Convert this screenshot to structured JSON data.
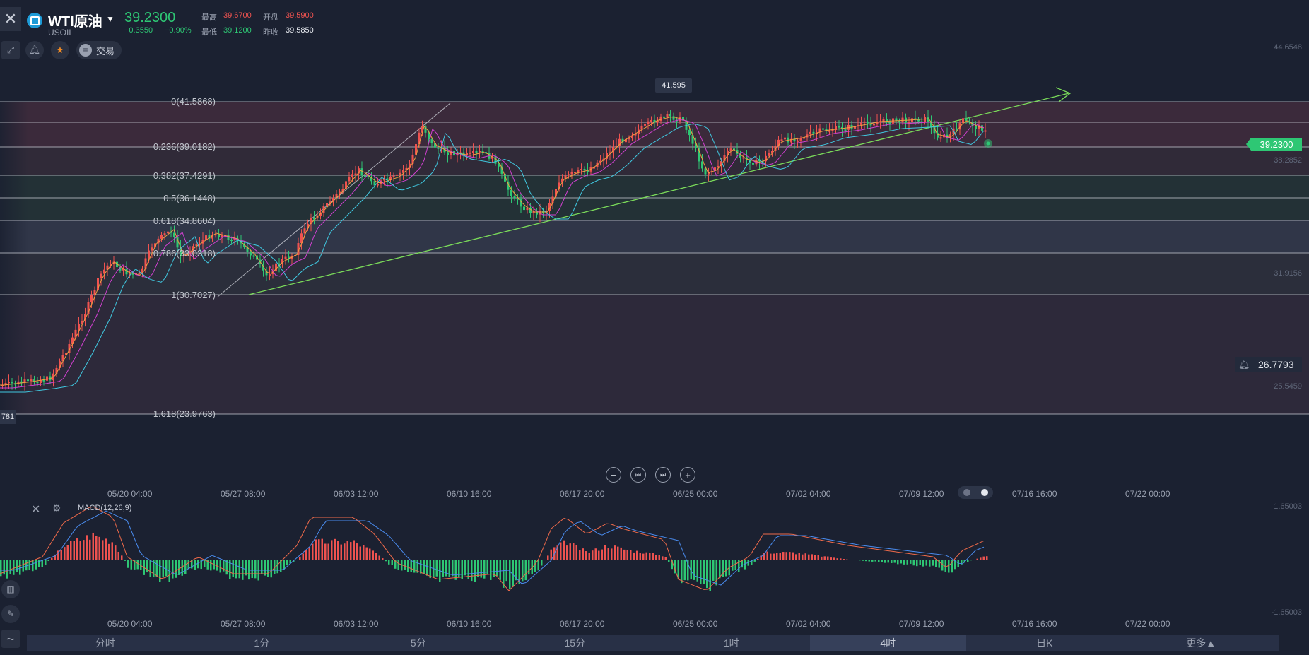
{
  "header": {
    "symbol_name": "WTI原油",
    "symbol_code": "USOIL",
    "price": "39.2300",
    "change": "−0.3550",
    "change_pct": "−0.90%",
    "high_label": "最高",
    "high": "39.6700",
    "open_label": "开盘",
    "open": "39.5900",
    "low_label": "最低",
    "low": "39.1200",
    "prev_close_label": "昨收",
    "prev_close": "39.5850",
    "trade_label": "交易"
  },
  "fib_levels": [
    {
      "label": "0(41.5868)"
    },
    {
      "label": "0.236(39.0182)"
    },
    {
      "label": "0.382(37.4291)"
    },
    {
      "label": "0.5(36.1448)"
    },
    {
      "label": "0.618(34.8604)"
    },
    {
      "label": "0.786(33.0318)"
    },
    {
      "label": "1(30.7027)"
    },
    {
      "label": "1.618(23.9763)"
    }
  ],
  "price_axis": [
    "44.6548",
    "38.2852",
    "31.9156",
    "25.5459"
  ],
  "current_price_tag": "39.2300",
  "alert_price": "26.7793",
  "peak_label": "41.595",
  "left_edge_tag": "781",
  "time_axis": [
    "05/20 04:00",
    "05/27 08:00",
    "06/03 12:00",
    "06/10 16:00",
    "06/17 20:00",
    "06/25 00:00",
    "07/02 04:00",
    "07/09 12:00",
    "07/16 16:00",
    "07/22 00:00"
  ],
  "macd": {
    "label": "MACD(12,26,9)",
    "axis_top": "1.65003",
    "axis_bottom": "-1.65003"
  },
  "timeframes": [
    "分时",
    "1分",
    "5分",
    "15分",
    "1时",
    "4时",
    "日K",
    "更多▲"
  ],
  "active_timeframe": "4时",
  "colors": {
    "up": "#ef5350",
    "down": "#2ec774",
    "background": "#1b2131"
  }
}
